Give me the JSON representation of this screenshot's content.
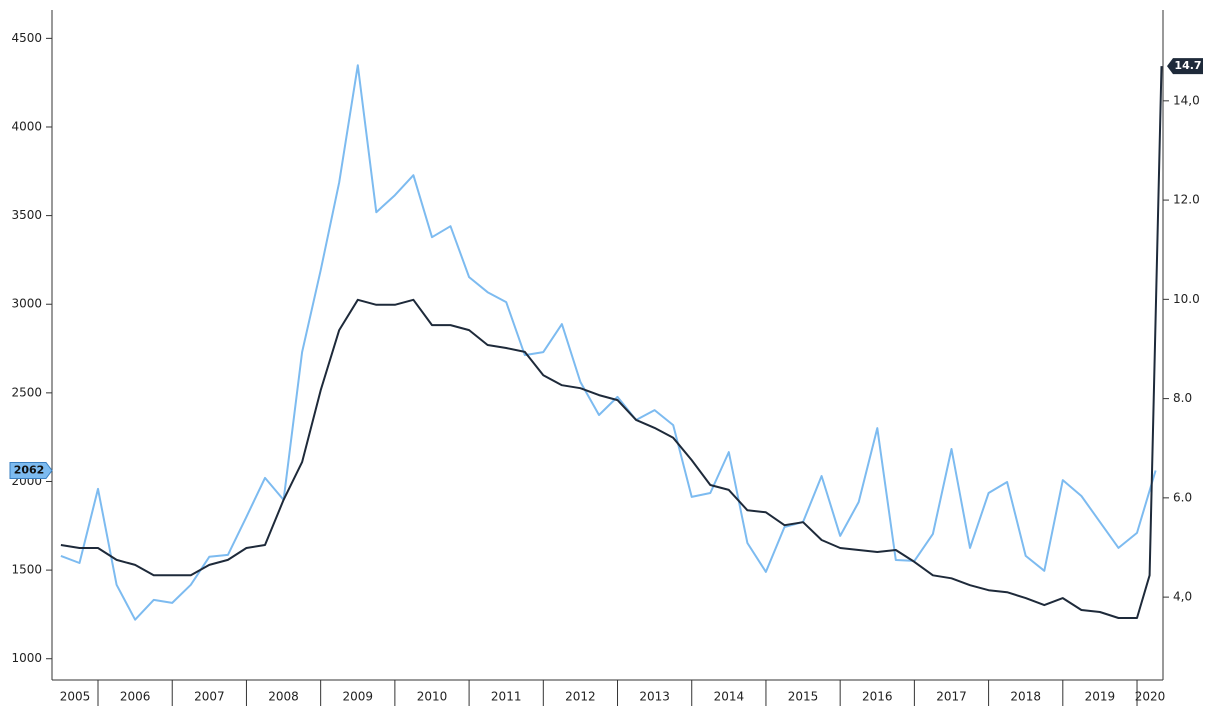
{
  "chart_data": {
    "type": "line",
    "xlim": [
      2005.38,
      2020.35
    ],
    "xticks": [
      2005,
      2006,
      2007,
      2008,
      2009,
      2010,
      2011,
      2012,
      2013,
      2014,
      2015,
      2016,
      2017,
      2018,
      2019,
      2020
    ],
    "ylim": [
      880,
      4660
    ],
    "yticks": [
      1000,
      1500,
      2000,
      2500,
      3000,
      3500,
      4000,
      4500
    ],
    "y2lim": [
      2.33,
      15.83
    ],
    "y2ticks": [
      {
        "value": 4.0,
        "label": "4,0"
      },
      {
        "value": 6.0,
        "label": "6.0"
      },
      {
        "value": 8.0,
        "label": "8.0"
      },
      {
        "value": 10.0,
        "label": "10.0"
      },
      {
        "value": 12.0,
        "label": "12.0"
      },
      {
        "value": 14.0,
        "label": "14,0"
      }
    ],
    "series": [
      {
        "color": "#7dbbf0",
        "axis": "y",
        "end_label": "2062",
        "x": [
          2005.5,
          2005.75,
          2006,
          2006.25,
          2006.5,
          2006.75,
          2007,
          2007.25,
          2007.5,
          2007.75,
          2008,
          2008.25,
          2008.5,
          2008.75,
          2009,
          2009.25,
          2009.5,
          2009.75,
          2010,
          2010.25,
          2010.5,
          2010.75,
          2011,
          2011.25,
          2011.5,
          2011.75,
          2012,
          2012.25,
          2012.5,
          2012.75,
          2013,
          2013.25,
          2013.5,
          2013.75,
          2014,
          2014.25,
          2014.5,
          2014.75,
          2015,
          2015.25,
          2015.5,
          2015.75,
          2016,
          2016.25,
          2016.5,
          2016.75,
          2017,
          2017.25,
          2017.5,
          2017.75,
          2018,
          2018.25,
          2018.5,
          2018.75,
          2019,
          2019.25,
          2019.5,
          2019.75,
          2020,
          2020.25
        ],
        "values": [
          1580,
          1540,
          1958,
          1417,
          1220,
          1332,
          1315,
          1417,
          1575,
          1586,
          1800,
          2020,
          1896,
          2730,
          3192,
          3688,
          4348,
          3519,
          3615,
          3728,
          3378,
          3440,
          3153,
          3068,
          3012,
          2713,
          2730,
          2888,
          2561,
          2375,
          2477,
          2347,
          2403,
          2318,
          1913,
          1935,
          2166,
          1653,
          1490,
          1743,
          1772,
          2031,
          1693,
          1884,
          2301,
          1557,
          1552,
          1704,
          2183,
          1625,
          1935,
          1997,
          1580,
          1496,
          2008,
          1918,
          1772,
          1625,
          1710,
          2062
        ]
      },
      {
        "color": "#1e2a3a",
        "axis": "y2",
        "end_label": "14.7",
        "x": [
          2005.5,
          2005.75,
          2006,
          2006.25,
          2006.5,
          2006.75,
          2007,
          2007.25,
          2007.5,
          2007.75,
          2008,
          2008.25,
          2008.5,
          2008.75,
          2009,
          2009.25,
          2009.5,
          2009.75,
          2010,
          2010.25,
          2010.5,
          2010.75,
          2011,
          2011.25,
          2011.5,
          2011.75,
          2012,
          2012.25,
          2012.5,
          2012.75,
          2013,
          2013.25,
          2013.5,
          2013.75,
          2014,
          2014.25,
          2014.5,
          2014.75,
          2015,
          2015.25,
          2015.5,
          2015.75,
          2016,
          2016.25,
          2016.5,
          2016.75,
          2017,
          2017.25,
          2017.5,
          2017.75,
          2018,
          2018.25,
          2018.5,
          2018.75,
          2019,
          2019.25,
          2019.5,
          2019.75,
          2020,
          2020.17,
          2020.33
        ],
        "values": [
          5.05,
          4.99,
          4.99,
          4.75,
          4.65,
          4.44,
          4.44,
          4.44,
          4.65,
          4.75,
          4.99,
          5.05,
          5.96,
          6.72,
          8.17,
          9.38,
          9.99,
          9.89,
          9.89,
          9.99,
          9.48,
          9.48,
          9.38,
          9.08,
          9.02,
          8.94,
          8.47,
          8.27,
          8.21,
          8.07,
          7.97,
          7.57,
          7.41,
          7.21,
          6.76,
          6.26,
          6.16,
          5.75,
          5.71,
          5.45,
          5.51,
          5.15,
          4.99,
          4.95,
          4.91,
          4.95,
          4.71,
          4.44,
          4.38,
          4.24,
          4.14,
          4.1,
          3.98,
          3.84,
          3.98,
          3.74,
          3.7,
          3.58,
          3.58,
          4.44,
          14.7
        ]
      }
    ]
  }
}
